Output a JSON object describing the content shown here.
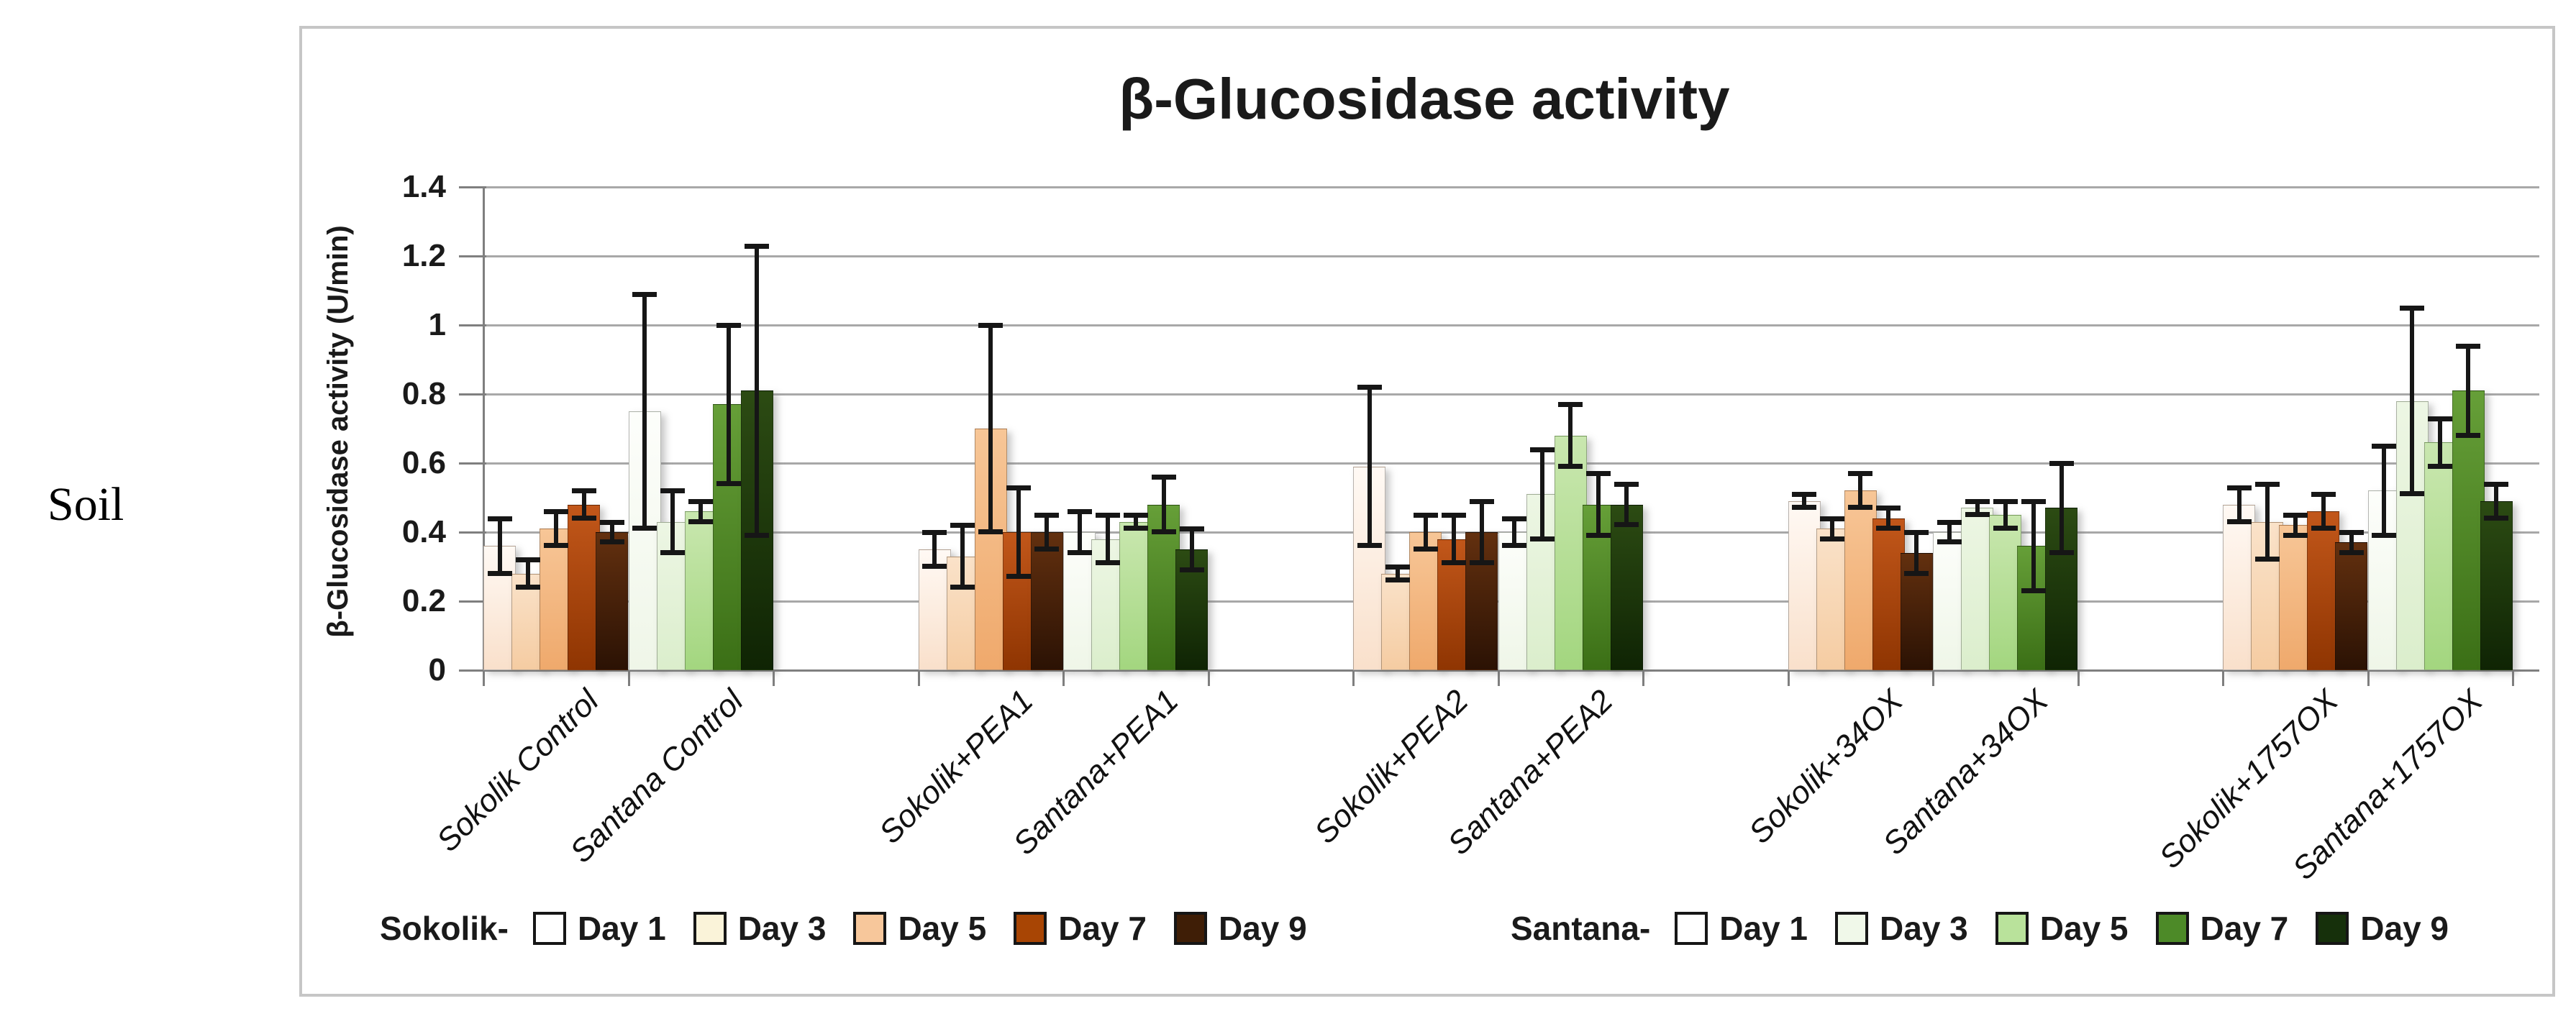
{
  "figure": {
    "side_label": "Soil"
  },
  "chart_data": {
    "type": "bar",
    "title": "β-Glucosidase activity",
    "ylabel": "β-Glucosidase activity (U/min)",
    "xlabel": "",
    "ylim": [
      0,
      1.4
    ],
    "ytick_labels_top_to_bottom": [
      "1.4",
      "1.2",
      "1",
      "0.8",
      "0.6",
      "0.4",
      "0.2",
      "0"
    ],
    "ytick_values_top_to_bottom": [
      1.4,
      1.2,
      1.0,
      0.8,
      0.6,
      0.4,
      0.2,
      0
    ],
    "grid": "horizontal-on",
    "legend_position": "bottom",
    "series_labels": [
      "Day 1",
      "Day 3",
      "Day 5",
      "Day 7",
      "Day 9"
    ],
    "categories": [
      "Sokolik Control",
      "Santana Control",
      "Sokolik+PEA1",
      "Santana+PEA1",
      "Sokolik+PEA2",
      "Santana+PEA2",
      "Sokolik+34OX",
      "Santana+34OX",
      "Sokolik+1757OX",
      "Santana+1757OX"
    ],
    "groups": [
      {
        "label": "Sokolik Control",
        "palette": "sokolik",
        "values": [
          0.36,
          0.28,
          0.41,
          0.48,
          0.4
        ],
        "errors": [
          0.08,
          0.04,
          0.05,
          0.04,
          0.03
        ]
      },
      {
        "label": "Santana Control",
        "palette": "santana",
        "values": [
          0.75,
          0.43,
          0.46,
          0.77,
          0.81
        ],
        "errors": [
          0.34,
          0.09,
          0.03,
          0.23,
          0.42
        ]
      },
      {
        "label": "Sokolik+PEA1",
        "palette": "sokolik",
        "values": [
          0.35,
          0.33,
          0.7,
          0.4,
          0.4
        ],
        "errors": [
          0.05,
          0.09,
          0.3,
          0.13,
          0.05
        ]
      },
      {
        "label": "Santana+PEA1",
        "palette": "santana",
        "values": [
          0.4,
          0.38,
          0.43,
          0.48,
          0.35
        ],
        "errors": [
          0.06,
          0.07,
          0.02,
          0.08,
          0.06
        ]
      },
      {
        "label": "Sokolik+PEA2",
        "palette": "sokolik",
        "values": [
          0.59,
          0.28,
          0.4,
          0.38,
          0.4
        ],
        "errors": [
          0.23,
          0.02,
          0.05,
          0.07,
          0.09
        ]
      },
      {
        "label": "Santana+PEA2",
        "palette": "santana",
        "values": [
          0.4,
          0.51,
          0.68,
          0.48,
          0.48
        ],
        "errors": [
          0.04,
          0.13,
          0.09,
          0.09,
          0.06
        ]
      },
      {
        "label": "Sokolik+34OX",
        "palette": "sokolik",
        "values": [
          0.49,
          0.41,
          0.52,
          0.44,
          0.34
        ],
        "errors": [
          0.02,
          0.03,
          0.05,
          0.03,
          0.06
        ]
      },
      {
        "label": "Santana+34OX",
        "palette": "santana",
        "values": [
          0.4,
          0.47,
          0.45,
          0.36,
          0.47
        ],
        "errors": [
          0.03,
          0.02,
          0.04,
          0.13,
          0.13
        ]
      },
      {
        "label": "Sokolik+1757OX",
        "palette": "sokolik",
        "values": [
          0.48,
          0.43,
          0.42,
          0.46,
          0.37
        ],
        "errors": [
          0.05,
          0.11,
          0.03,
          0.05,
          0.03
        ]
      },
      {
        "label": "Santana+1757OX",
        "palette": "santana",
        "values": [
          0.52,
          0.78,
          0.66,
          0.81,
          0.49
        ],
        "errors": [
          0.13,
          0.27,
          0.07,
          0.13,
          0.05
        ]
      }
    ]
  },
  "legend": {
    "left": {
      "prefix": "Sokolik-",
      "items": [
        "Day 1",
        "Day 3",
        "Day 5",
        "Day 7",
        "Day 9"
      ]
    },
    "right": {
      "prefix": "Santana-",
      "items": [
        "Day 1",
        "Day 3",
        "Day 5",
        "Day 7",
        "Day 9"
      ]
    }
  },
  "colors": {
    "sokolik_bar_gradients": [
      [
        "#FFF9F4",
        "#F9E0CB"
      ],
      [
        "#FAE2C9",
        "#F5CCA2"
      ],
      [
        "#F7C697",
        "#EFA96C"
      ],
      [
        "#C2571A",
        "#8F3502"
      ],
      [
        "#63300F",
        "#2B1204"
      ]
    ],
    "santana_bar_gradients": [
      [
        "#FDFEFB",
        "#EFF6E8"
      ],
      [
        "#EDF6E4",
        "#DBEECC"
      ],
      [
        "#C9E7AF",
        "#A3D67F"
      ],
      [
        "#669F38",
        "#3B6F16"
      ],
      [
        "#2C4B13",
        "#0F2404"
      ]
    ],
    "sokolik_legend_swatches": [
      "#FFFFFF",
      "#FAF3D9",
      "#F7C79B",
      "#A84504",
      "#3F1E06"
    ],
    "santana_legend_swatches": [
      "#FFFFFF",
      "#F0F8E9",
      "#B9E29B",
      "#4D8A28",
      "#16300B"
    ],
    "gridline": "#A8A8A8",
    "axis": "#7F7F7F",
    "error_bar": "#161616",
    "panel_border": "#C6C6C6",
    "text": "#1A1A1A"
  }
}
